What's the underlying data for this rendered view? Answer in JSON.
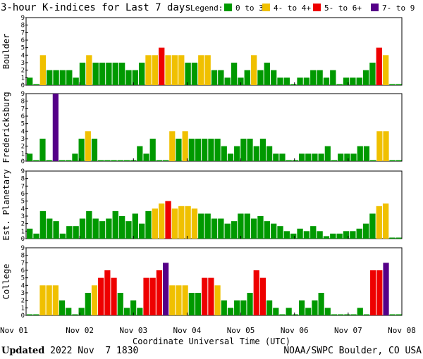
{
  "chart_data": {
    "type": "bar",
    "title": "3-hour K-indices for Last 7 days",
    "legend_label": "Legend:",
    "legend": [
      {
        "label": "0 to 3+",
        "color": "#009900"
      },
      {
        "label": "4- to 4+",
        "color": "#f0c000"
      },
      {
        "label": "5- to 6+",
        "color": "#ee0000"
      },
      {
        "label": "7- to 9",
        "color": "#550088"
      }
    ],
    "xlabel": "Coordinate Universal Time (UTC)",
    "x_ticks": [
      "Nov 01",
      "Nov 02",
      "Nov 03",
      "Nov 04",
      "Nov 05",
      "Nov 06",
      "Nov 07",
      "Nov 08"
    ],
    "ylim": [
      0,
      9
    ],
    "y_ticks": [
      "0",
      "1",
      "2",
      "3",
      "4",
      "5",
      "6",
      "7",
      "8",
      "9"
    ],
    "panels": [
      {
        "name": "Boulder",
        "values": [
          1,
          0,
          4,
          2,
          2,
          2,
          2,
          1,
          3,
          4,
          3,
          3,
          3,
          3,
          3,
          2,
          2,
          3,
          4,
          4,
          5,
          4,
          4,
          4,
          3,
          3,
          4,
          4,
          2,
          2,
          1,
          3,
          1,
          2,
          4,
          2,
          3,
          2,
          1,
          1,
          0,
          1,
          1,
          2,
          2,
          1,
          2,
          0,
          1,
          1,
          1,
          2,
          3,
          5,
          4,
          0,
          0
        ]
      },
      {
        "name": "Fredericksburg",
        "values": [
          1,
          0,
          3,
          0,
          9,
          0,
          0,
          1,
          3,
          4,
          3,
          0,
          0,
          0,
          0,
          0,
          0,
          2,
          1,
          3,
          0,
          0,
          4,
          3,
          4,
          3,
          3,
          3,
          3,
          3,
          2,
          1,
          2,
          3,
          3,
          2,
          3,
          2,
          1,
          1,
          0,
          0,
          1,
          1,
          1,
          1,
          2,
          0,
          1,
          1,
          1,
          2,
          2,
          0,
          4,
          4,
          0,
          0
        ]
      },
      {
        "name": "Est. Planetary",
        "values": [
          1.33,
          0.67,
          3.67,
          2.67,
          2.33,
          0.67,
          1.67,
          1.67,
          2.67,
          3.67,
          2.67,
          2.33,
          2.67,
          3.67,
          3,
          2.33,
          3.33,
          2,
          3.67,
          4,
          4.67,
          5,
          4,
          4.33,
          4.33,
          4,
          3.33,
          3.33,
          2.67,
          2.67,
          2,
          2.33,
          3.33,
          3.33,
          2.67,
          3,
          2.33,
          2,
          1.67,
          1,
          0.67,
          1.33,
          1,
          1.67,
          1,
          0.33,
          0.67,
          0.67,
          1,
          1,
          1.33,
          2,
          3.33,
          4.33,
          4.67,
          0,
          0
        ]
      },
      {
        "name": "College",
        "values": [
          0,
          0,
          4,
          4,
          4,
          2,
          1,
          0,
          1,
          3,
          4,
          5,
          6,
          5,
          3,
          1,
          2,
          1,
          5,
          5,
          6,
          7,
          4,
          4,
          4,
          3,
          3,
          5,
          5,
          4,
          2,
          1,
          2,
          2,
          3,
          6,
          5,
          2,
          1,
          0,
          1,
          0,
          2,
          1,
          2,
          3,
          1,
          0,
          0,
          0,
          0,
          1,
          0,
          6,
          6,
          7,
          0,
          0
        ]
      }
    ]
  },
  "footer": {
    "updated_label": "Updated",
    "updated_value": " 2022 Nov  7 1830",
    "source": "NOAA/SWPC Boulder, CO USA"
  }
}
